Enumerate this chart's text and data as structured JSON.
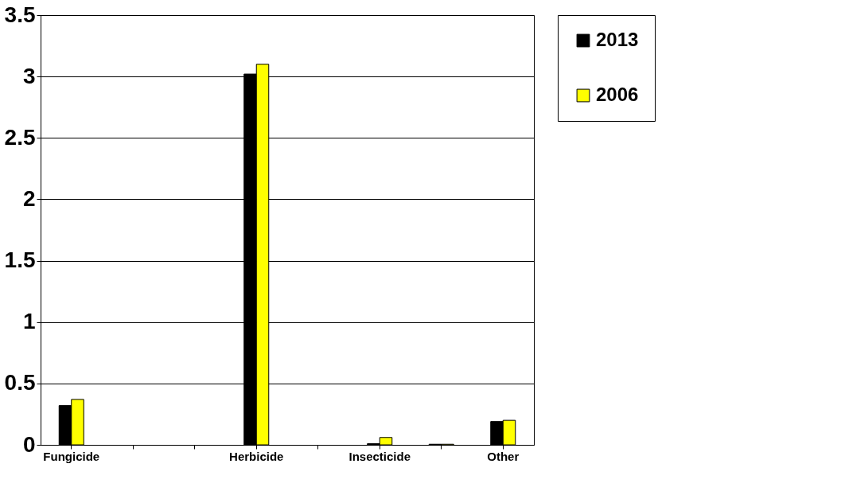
{
  "chart_data": {
    "type": "bar",
    "categories": [
      "Fungicide",
      null,
      null,
      "Herbicide",
      null,
      "Insecticide",
      null,
      "Other"
    ],
    "series": [
      {
        "name": "2013",
        "color": "#000000",
        "values": [
          0.32,
          null,
          null,
          3.02,
          null,
          0.01,
          0.005,
          0.19
        ]
      },
      {
        "name": "2006",
        "color": "#ffff00",
        "values": [
          0.37,
          null,
          null,
          3.1,
          null,
          0.06,
          0.005,
          0.2
        ]
      }
    ],
    "ylim": [
      0,
      3.5
    ],
    "yticks": [
      0,
      0.5,
      1,
      1.5,
      2,
      2.5,
      3,
      3.5
    ],
    "grid": "y",
    "legend": "right"
  }
}
